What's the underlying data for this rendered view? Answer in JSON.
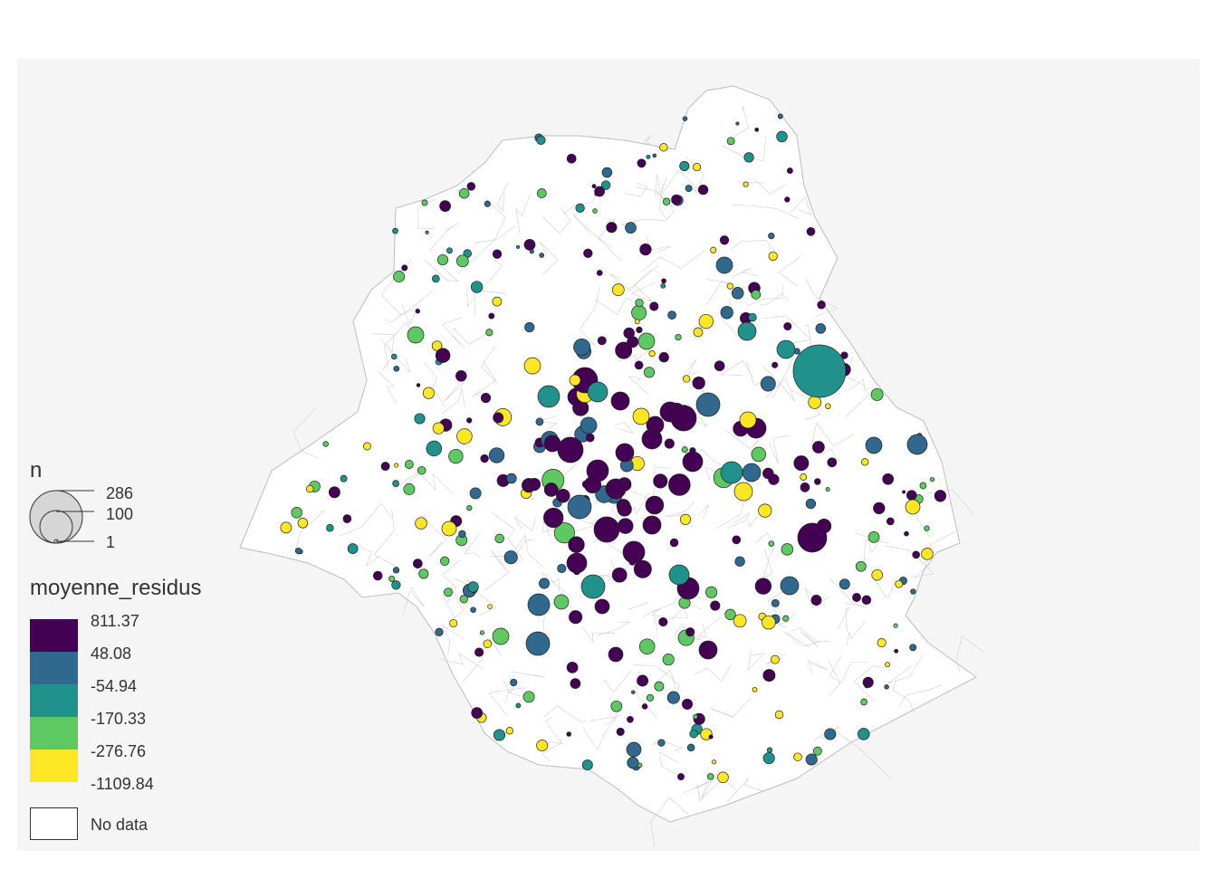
{
  "map": {
    "panel_background": "#f5f5f5",
    "boundary_stroke": "#cfcfcf",
    "symbol_stroke": "#222222"
  },
  "legend_size": {
    "title": "n",
    "values": [
      "286",
      "100",
      "1"
    ]
  },
  "legend_color": {
    "title": "moyenne_residus",
    "breaks": [
      "811.37",
      "48.08",
      "-54.94",
      "-170.33",
      "-276.76",
      "-1109.84"
    ],
    "classes": [
      {
        "color": "#440154"
      },
      {
        "color": "#31688e"
      },
      {
        "color": "#21918c"
      },
      {
        "color": "#5ec962"
      },
      {
        "color": "#fde725"
      }
    ],
    "no_data_label": "No data",
    "no_data_color": "#ffffff"
  }
}
